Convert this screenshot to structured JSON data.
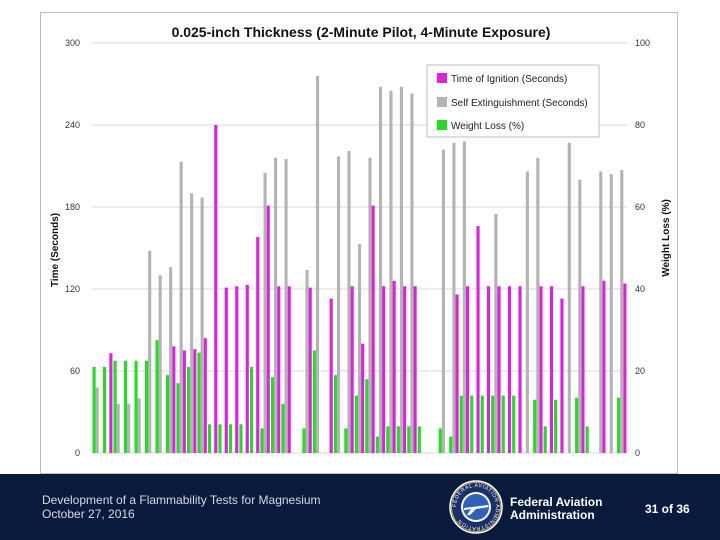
{
  "chart_data": {
    "type": "bar",
    "title": "0.025-inch Thickness (2-Minute Pilot, 4-Minute Exposure)",
    "ylabel": "Time (Seconds)",
    "y2label": "Weight Loss (%)",
    "ylim": [
      0,
      300
    ],
    "y2lim": [
      0,
      100
    ],
    "yticks": [
      0,
      60,
      120,
      180,
      240,
      300
    ],
    "y2ticks": [
      0,
      20,
      40,
      60,
      80,
      100
    ],
    "grid": true,
    "legend_position": "top-right",
    "n_samples": 51,
    "series": [
      {
        "name": "Time of Ignition (Seconds)",
        "color": "#e020e0",
        "axis": "left",
        "values": [
          0,
          73,
          0,
          0,
          0,
          0,
          0,
          78,
          75,
          76,
          84,
          240,
          121,
          122,
          123,
          158,
          181,
          122,
          122,
          0,
          121,
          0,
          113,
          0,
          122,
          80,
          181,
          122,
          126,
          122,
          122,
          0,
          0,
          0,
          116,
          122,
          166,
          122,
          122,
          122,
          122,
          0,
          122,
          122,
          113,
          0,
          122,
          0,
          126,
          0,
          124
        ]
      },
      {
        "name": "Self Extinguishment (Seconds)",
        "color": "#b4b4b4",
        "axis": "left",
        "values": [
          48,
          0,
          36,
          36,
          40,
          148,
          130,
          136,
          213,
          190,
          187,
          0,
          0,
          0,
          0,
          0,
          205,
          216,
          215,
          0,
          134,
          276,
          0,
          217,
          221,
          153,
          216,
          268,
          265,
          268,
          263,
          0,
          0,
          222,
          227,
          228,
          0,
          0,
          175,
          0,
          0,
          206,
          216,
          0,
          0,
          227,
          200,
          0,
          206,
          204,
          207
        ]
      },
      {
        "name": "Weight Loss (%)",
        "color": "#22dd22",
        "axis": "right",
        "values": [
          21,
          21,
          22.5,
          22.5,
          22.5,
          22.5,
          27.5,
          19,
          17,
          21,
          24.5,
          7,
          7,
          7,
          7,
          21,
          6,
          18.5,
          12,
          0,
          6,
          25,
          0,
          19,
          6,
          14,
          18,
          4,
          6.5,
          6.5,
          6.5,
          6.5,
          0,
          6,
          4,
          14,
          14,
          14,
          14,
          14,
          14,
          0,
          13,
          6.5,
          13,
          0,
          13.5,
          6.5,
          0,
          0,
          13.5
        ]
      }
    ]
  },
  "footer": {
    "line1": "Development of a Flammability Tests for Magnesium",
    "line2": "October 27, 2016",
    "faa_line1": "Federal Aviation",
    "faa_line2": "Administration",
    "page": "31 of 36",
    "seal_text": "FEDERAL AVIATION ADMINISTRATION"
  },
  "colors": {
    "footer_bg": "#0a1a3d",
    "grid": "#d9d9d9"
  }
}
